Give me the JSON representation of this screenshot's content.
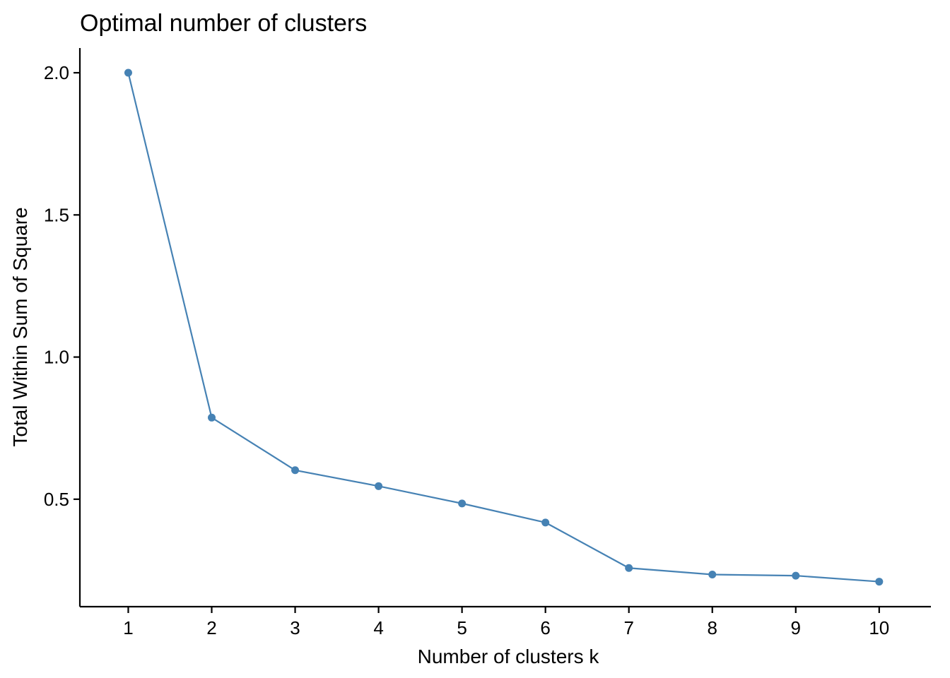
{
  "chart_data": {
    "type": "line",
    "title": "Optimal number of clusters",
    "xlabel": "Number of clusters k",
    "ylabel": "Total Within Sum of Square",
    "categories": [
      "1",
      "2",
      "3",
      "4",
      "5",
      "6",
      "7",
      "8",
      "9",
      "10"
    ],
    "x": [
      1,
      2,
      3,
      4,
      5,
      6,
      7,
      8,
      9,
      10
    ],
    "series": [
      {
        "values": [
          2.0,
          0.787,
          0.602,
          0.546,
          0.485,
          0.418,
          0.258,
          0.235,
          0.231,
          0.21
        ],
        "color": "#4682B4"
      }
    ],
    "yticks": [
      0.5,
      1.0,
      1.5,
      2.0
    ],
    "ytick_labels": [
      "0.5",
      "1.0",
      "1.5",
      "2.0"
    ],
    "xlim": [
      0.42,
      10.62
    ],
    "ylim": [
      0.122,
      2.087
    ],
    "grid": false,
    "legend": "none",
    "markers": true
  }
}
